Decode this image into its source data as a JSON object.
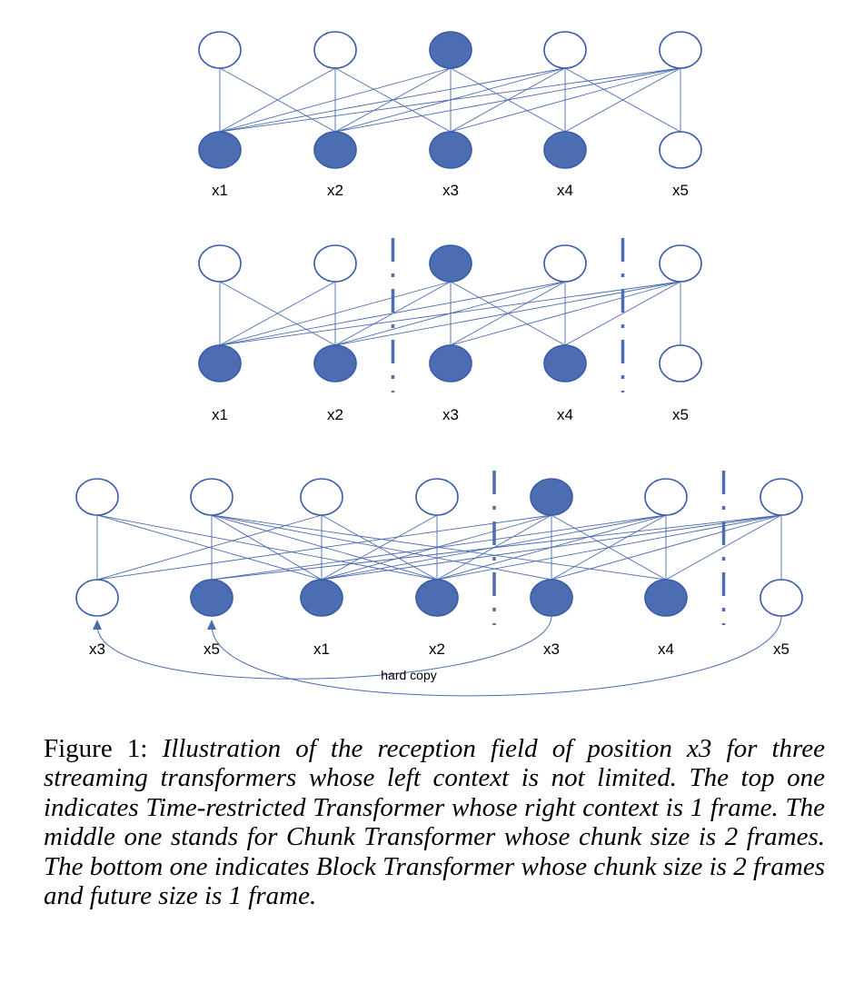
{
  "panels": [
    {
      "id": "time-restricted",
      "labels": [
        "x1",
        "x2",
        "x3",
        "x4",
        "x5"
      ],
      "top_filled": [
        false,
        false,
        true,
        false,
        false
      ],
      "bottom_filled": [
        true,
        true,
        true,
        true,
        false
      ],
      "connections": [
        [
          0,
          0
        ],
        [
          0,
          1
        ],
        [
          1,
          0
        ],
        [
          1,
          1
        ],
        [
          1,
          2
        ],
        [
          2,
          0
        ],
        [
          2,
          1
        ],
        [
          2,
          2
        ],
        [
          2,
          3
        ],
        [
          3,
          0
        ],
        [
          3,
          1
        ],
        [
          3,
          2
        ],
        [
          3,
          3
        ],
        [
          3,
          4
        ],
        [
          4,
          0
        ],
        [
          4,
          1
        ],
        [
          4,
          2
        ],
        [
          4,
          3
        ],
        [
          4,
          4
        ]
      ],
      "dividers_after": []
    },
    {
      "id": "chunk",
      "labels": [
        "x1",
        "x2",
        "x3",
        "x4",
        "x5"
      ],
      "top_filled": [
        false,
        false,
        true,
        false,
        false
      ],
      "bottom_filled": [
        true,
        true,
        true,
        true,
        false
      ],
      "connections": [
        [
          0,
          0
        ],
        [
          0,
          1
        ],
        [
          1,
          0
        ],
        [
          1,
          1
        ],
        [
          2,
          0
        ],
        [
          2,
          1
        ],
        [
          2,
          2
        ],
        [
          2,
          3
        ],
        [
          3,
          0
        ],
        [
          3,
          1
        ],
        [
          3,
          2
        ],
        [
          3,
          3
        ],
        [
          4,
          0
        ],
        [
          4,
          1
        ],
        [
          4,
          2
        ],
        [
          4,
          3
        ],
        [
          4,
          4
        ]
      ],
      "dividers_after": [
        1,
        3
      ]
    },
    {
      "id": "block",
      "labels": [
        "x3",
        "x5",
        "x1",
        "x2",
        "x3",
        "x4",
        "x5"
      ],
      "top_filled": [
        false,
        false,
        false,
        false,
        true,
        false,
        false
      ],
      "bottom_filled": [
        false,
        true,
        true,
        true,
        true,
        true,
        false
      ],
      "connections": [
        [
          0,
          0
        ],
        [
          0,
          2
        ],
        [
          0,
          3
        ],
        [
          1,
          1
        ],
        [
          1,
          2
        ],
        [
          1,
          3
        ],
        [
          1,
          4
        ],
        [
          1,
          5
        ],
        [
          2,
          0
        ],
        [
          2,
          2
        ],
        [
          2,
          3
        ],
        [
          3,
          2
        ],
        [
          3,
          3
        ],
        [
          4,
          0
        ],
        [
          4,
          2
        ],
        [
          4,
          3
        ],
        [
          4,
          4
        ],
        [
          4,
          5
        ],
        [
          5,
          1
        ],
        [
          5,
          2
        ],
        [
          5,
          3
        ],
        [
          5,
          4
        ],
        [
          5,
          5
        ],
        [
          6,
          1
        ],
        [
          6,
          2
        ],
        [
          6,
          3
        ],
        [
          6,
          4
        ],
        [
          6,
          5
        ],
        [
          6,
          6
        ]
      ],
      "dividers_after": [
        3,
        5
      ],
      "copy_arcs": [
        [
          4,
          0
        ],
        [
          6,
          1
        ]
      ],
      "annotation": "hard copy"
    }
  ],
  "colors": {
    "filled": "#4d6db3",
    "stroke": "#3a5da8"
  },
  "caption": {
    "label": "Figure 1:",
    "text": "Illustration of the reception field of position x3 for three streaming transformers whose left context is not limited. The top one indicates Time-restricted Transformer whose right context is 1 frame. The middle one stands for Chunk Transformer whose chunk size is 2 frames. The bottom one indicates Block Transformer whose chunk size is 2 frames and future size is 1 frame."
  }
}
